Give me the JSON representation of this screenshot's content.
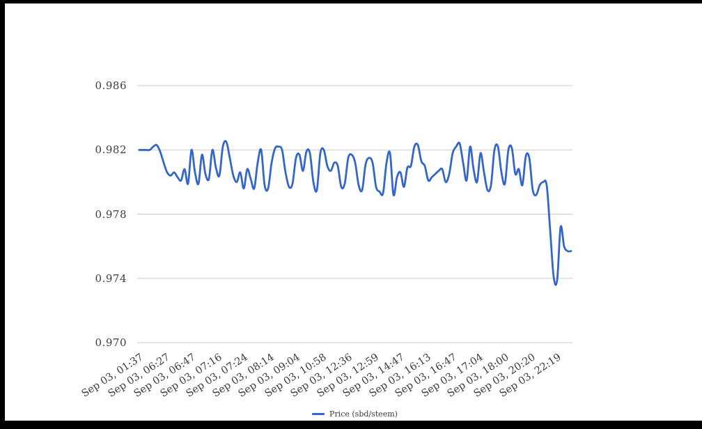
{
  "frame": {
    "background_color": "#000000",
    "page_color": "#ffffff"
  },
  "chart_data": {
    "type": "line",
    "title": "",
    "xlabel": "",
    "ylabel": "",
    "grid": true,
    "grid_color": "#cccccc",
    "legend": {
      "position": "bottom-center",
      "label": "Price (sbd/steem)"
    },
    "series": [
      {
        "name": "Price (sbd/steem)",
        "color": "#3366cc"
      }
    ],
    "y_axis": {
      "min": 0.97,
      "max": 0.986,
      "ticks": [
        "0.986",
        "0.982",
        "0.978",
        "0.974",
        "0.970"
      ]
    },
    "x_axis": {
      "ticks": [
        "Sep 03, 01:37",
        "Sep 03, 06:27",
        "Sep 03, 06:47",
        "Sep 03, 07:16",
        "Sep 03, 07:24",
        "Sep 03, 08:14",
        "Sep 03, 09:04",
        "Sep 03, 10:58",
        "Sep 03, 12:36",
        "Sep 03, 12:59",
        "Sep 03, 14:47",
        "Sep 03, 16:13",
        "Sep 03, 16:47",
        "Sep 03, 17:04",
        "Sep 03, 18:00",
        "Sep 03, 20:20",
        "Sep 03, 22:19"
      ]
    },
    "prices": [
      0.982,
      0.982,
      0.982,
      0.982,
      0.9822,
      0.9823,
      0.9819,
      0.9812,
      0.9806,
      0.9804,
      0.9806,
      0.9803,
      0.9801,
      0.9808,
      0.9799,
      0.982,
      0.9806,
      0.9799,
      0.9817,
      0.9805,
      0.9802,
      0.982,
      0.9809,
      0.9804,
      0.9822,
      0.9825,
      0.9815,
      0.9804,
      0.98,
      0.9806,
      0.9796,
      0.9808,
      0.9802,
      0.9796,
      0.9812,
      0.982,
      0.9798,
      0.9796,
      0.9812,
      0.9821,
      0.9822,
      0.982,
      0.9806,
      0.9797,
      0.9799,
      0.9815,
      0.9817,
      0.9807,
      0.9819,
      0.9818,
      0.98,
      0.9795,
      0.9818,
      0.982,
      0.981,
      0.9807,
      0.9812,
      0.981,
      0.9797,
      0.9799,
      0.9815,
      0.9817,
      0.9812,
      0.9798,
      0.9795,
      0.9811,
      0.9815,
      0.9812,
      0.9797,
      0.9794,
      0.9793,
      0.9812,
      0.9818,
      0.9792,
      0.9803,
      0.9806,
      0.9797,
      0.9809,
      0.981,
      0.9822,
      0.9823,
      0.9813,
      0.981,
      0.9801,
      0.9803,
      0.9805,
      0.9807,
      0.9808,
      0.98,
      0.9805,
      0.9818,
      0.9822,
      0.9824,
      0.9812,
      0.9801,
      0.9822,
      0.9808,
      0.98,
      0.9818,
      0.9806,
      0.9795,
      0.9798,
      0.982,
      0.9822,
      0.9806,
      0.9799,
      0.982,
      0.9821,
      0.9805,
      0.9808,
      0.9798,
      0.9816,
      0.9815,
      0.9795,
      0.9792,
      0.9798,
      0.98,
      0.9798,
      0.977,
      0.9741,
      0.9739,
      0.9772,
      0.976,
      0.9757,
      0.9757
    ]
  }
}
